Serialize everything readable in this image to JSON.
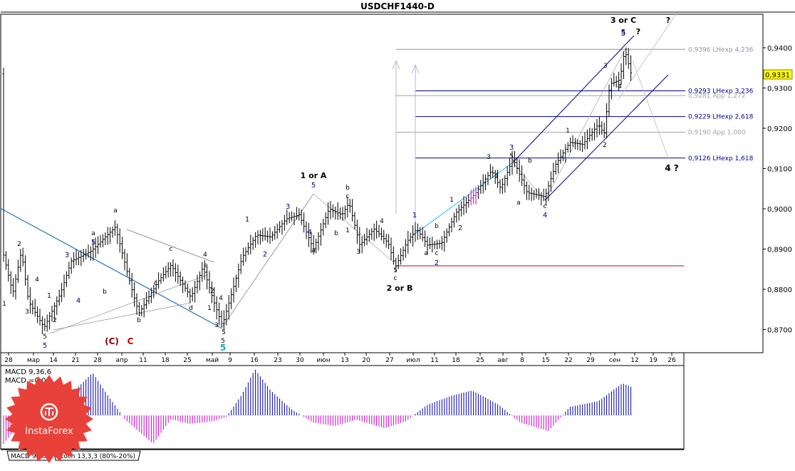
{
  "window": {
    "title": "USDCHF1440-D"
  },
  "chart_data": {
    "type": "candlestick",
    "symbol": "USDCHF1440-D",
    "current_price": "0,9331",
    "y_ticks": [
      "0,9400",
      "0,9300",
      "0,9200",
      "0,9100",
      "0,9000",
      "0,8900",
      "0,8800",
      "0,8700"
    ],
    "x_ticks": [
      "28",
      "мар",
      "14",
      "21",
      "28",
      "апр",
      "11",
      "18",
      "25",
      "май",
      "9",
      "16",
      "23",
      "30",
      "июн",
      "13",
      "20",
      "27",
      "июл",
      "11",
      "18",
      "25",
      "авг",
      "8",
      "15",
      "22",
      "29",
      "сен",
      "12",
      "19",
      "26"
    ],
    "levels": [
      {
        "label": "0,9396 LНехр 4,236",
        "price": 0.9396,
        "color": "#9090a8"
      },
      {
        "label": "0,9293 LНехр 3,236",
        "price": 0.9293,
        "color": "#00008b"
      },
      {
        "label": "0,9281 App 1,272",
        "price": 0.9281,
        "color": "#a0a0a0"
      },
      {
        "label": "0,9229 LНехр 2,618",
        "price": 0.9229,
        "color": "#00008b"
      },
      {
        "label": "0,9190 App 1,000",
        "price": 0.919,
        "color": "#a0a0a0"
      },
      {
        "label": "0,9126 LНехр 1,618",
        "price": 0.9126,
        "color": "#00008b"
      }
    ],
    "wave_labels": [
      "3 or C",
      "?",
      "5",
      "?",
      "4 ?",
      "1 or A",
      "2 or B",
      "(C)",
      "C",
      "5",
      "a",
      "b",
      "c",
      "d",
      "e",
      "1",
      "2",
      "3",
      "4"
    ],
    "macd": {
      "label1": "MACD 9,36,6",
      "label2": "MACD =0,00"
    },
    "tabs": [
      "MACD 9,36,6",
      "Stoch 13,3,3 (80%-20%)"
    ]
  },
  "logo": {
    "text": "InstaForex"
  }
}
